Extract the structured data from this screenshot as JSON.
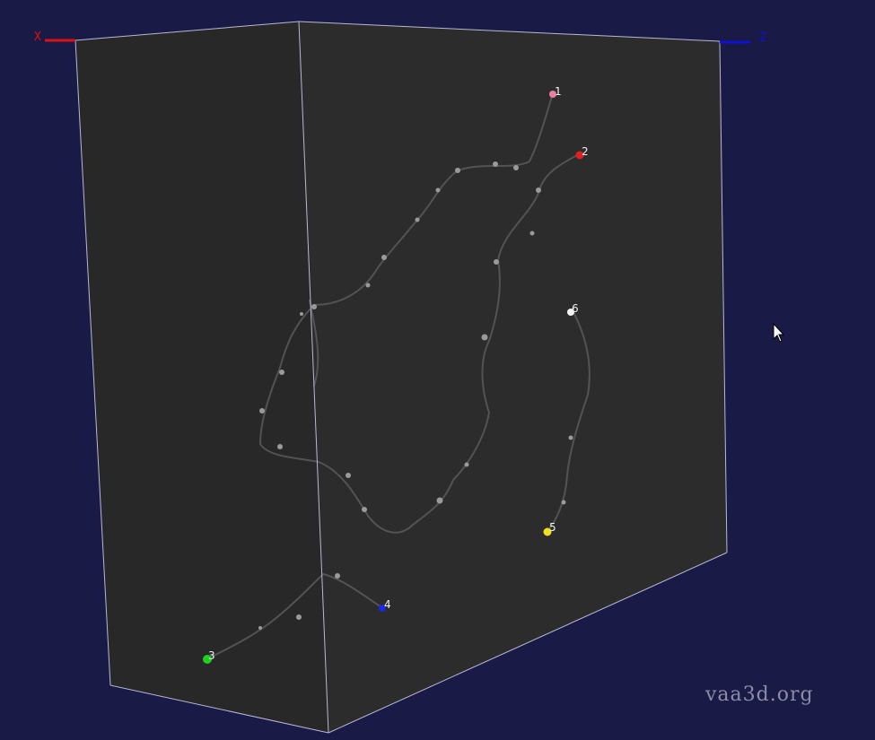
{
  "viewer": {
    "watermark": "vaa3d.org",
    "background_color": "#1a1a46",
    "volume_face_color": "#2a2a2a",
    "edge_color": "#b8b8d8"
  },
  "axes": {
    "x": {
      "label": "X",
      "color": "#e01010"
    },
    "z": {
      "label": "Z",
      "color": "#1010d0"
    }
  },
  "markers": [
    {
      "label": "1",
      "color": "#e87fa0"
    },
    {
      "label": "2",
      "color": "#e02020"
    },
    {
      "label": "6",
      "color": "#f4f4f4"
    },
    {
      "label": "5",
      "color": "#f0e020"
    },
    {
      "label": "4",
      "color": "#1a2ae0"
    },
    {
      "label": "3",
      "color": "#20d020"
    }
  ]
}
